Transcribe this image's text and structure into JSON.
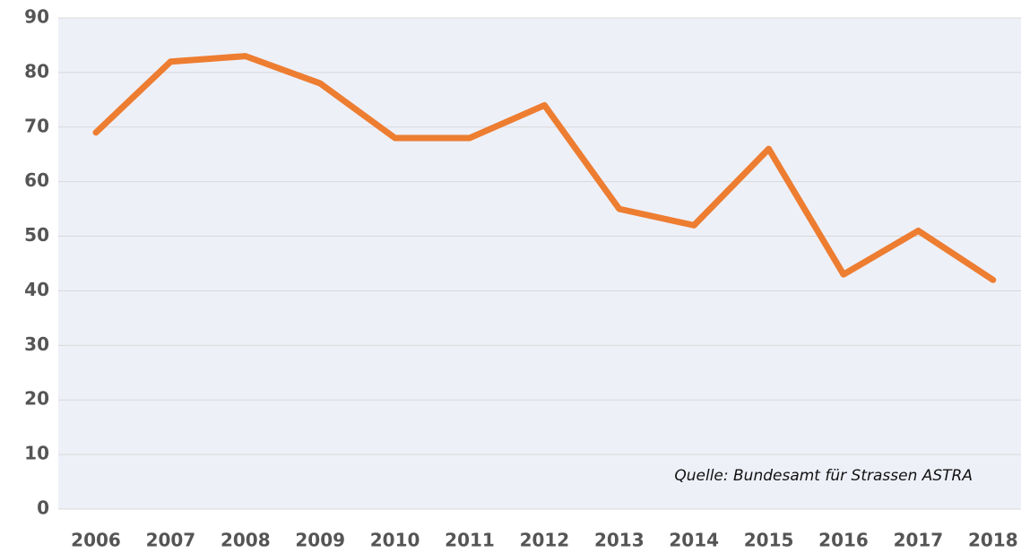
{
  "chart_data": {
    "type": "line",
    "categories": [
      "2006",
      "2007",
      "2008",
      "2009",
      "2010",
      "2011",
      "2012",
      "2013",
      "2014",
      "2015",
      "2016",
      "2017",
      "2018"
    ],
    "series": [
      {
        "name": null,
        "color": "#ed7d31",
        "values": [
          69,
          82,
          83,
          78,
          68,
          68,
          74,
          55,
          52,
          66,
          43,
          51,
          42
        ]
      }
    ],
    "ylim": [
      0,
      90
    ],
    "yticks": [
      0,
      10,
      20,
      30,
      40,
      50,
      60,
      70,
      80,
      90
    ],
    "grid": true,
    "annotation": "Quelle: Bundesamt für Strassen ASTRA"
  }
}
